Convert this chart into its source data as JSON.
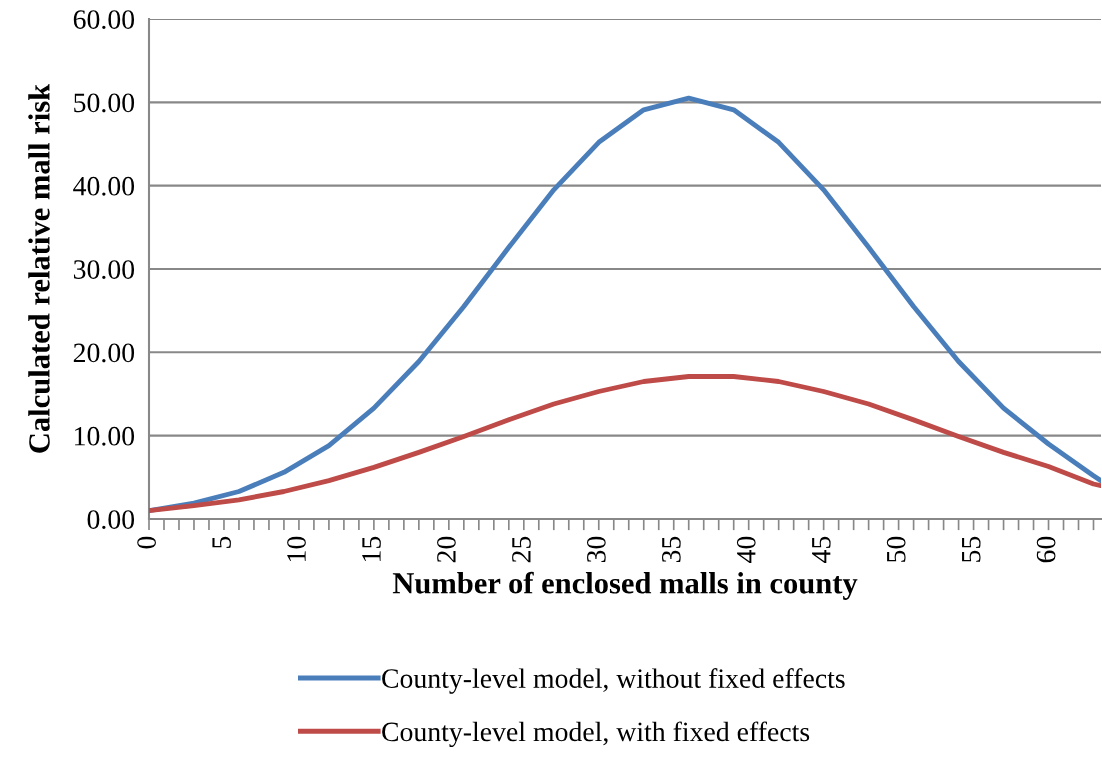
{
  "chart_data": {
    "type": "line",
    "xlabel": "Number of enclosed malls in county",
    "ylabel": "Calculated relative mall risk",
    "x": [
      0,
      3,
      6,
      9,
      12,
      15,
      18,
      21,
      24,
      27,
      30,
      33,
      36,
      39,
      42,
      45,
      48,
      51,
      54,
      57,
      60,
      63,
      63.5
    ],
    "series": [
      {
        "name": "County-level model, without fixed effects",
        "color": "#4a7ebb",
        "values": [
          1.0,
          1.9,
          3.3,
          5.6,
          8.8,
          13.3,
          18.9,
          25.5,
          32.6,
          39.5,
          45.2,
          49.1,
          50.5,
          49.1,
          45.2,
          39.5,
          32.6,
          25.5,
          18.9,
          13.3,
          9.0,
          5.2,
          4.6
        ]
      },
      {
        "name": "County-level model, with fixed effects",
        "color": "#be4b48",
        "values": [
          1.0,
          1.6,
          2.3,
          3.3,
          4.6,
          6.2,
          8.0,
          9.9,
          11.9,
          13.8,
          15.3,
          16.5,
          17.1,
          17.1,
          16.5,
          15.3,
          13.8,
          11.9,
          9.9,
          8.0,
          6.3,
          4.2,
          4.0
        ]
      }
    ],
    "xlim": [
      0,
      63.5
    ],
    "xticks": [
      0,
      {
        "value": 1,
        "label": null
      },
      {
        "value": 2,
        "label": null
      },
      {
        "value": 3,
        "label": null
      },
      {
        "value": 4,
        "label": null
      },
      5,
      {
        "value": 6,
        "label": null
      },
      {
        "value": 7,
        "label": null
      },
      {
        "value": 8,
        "label": null
      },
      {
        "value": 9,
        "label": null
      },
      10,
      {
        "value": 11,
        "label": null
      },
      {
        "value": 12,
        "label": null
      },
      {
        "value": 13,
        "label": null
      },
      {
        "value": 14,
        "label": null
      },
      15,
      {
        "value": 16,
        "label": null
      },
      {
        "value": 17,
        "label": null
      },
      {
        "value": 18,
        "label": null
      },
      {
        "value": 19,
        "label": null
      },
      20,
      {
        "value": 21,
        "label": null
      },
      {
        "value": 22,
        "label": null
      },
      {
        "value": 23,
        "label": null
      },
      {
        "value": 24,
        "label": null
      },
      25,
      {
        "value": 26,
        "label": null
      },
      {
        "value": 27,
        "label": null
      },
      {
        "value": 28,
        "label": null
      },
      {
        "value": 29,
        "label": null
      },
      30,
      {
        "value": 31,
        "label": null
      },
      {
        "value": 32,
        "label": null
      },
      {
        "value": 33,
        "label": null
      },
      {
        "value": 34,
        "label": null
      },
      35,
      {
        "value": 36,
        "label": null
      },
      {
        "value": 37,
        "label": null
      },
      {
        "value": 38,
        "label": null
      },
      {
        "value": 39,
        "label": null
      },
      40,
      {
        "value": 41,
        "label": null
      },
      {
        "value": 42,
        "label": null
      },
      {
        "value": 43,
        "label": null
      },
      {
        "value": 44,
        "label": null
      },
      45,
      {
        "value": 46,
        "label": null
      },
      {
        "value": 47,
        "label": null
      },
      {
        "value": 48,
        "label": null
      },
      {
        "value": 49,
        "label": null
      },
      50,
      {
        "value": 51,
        "label": null
      },
      {
        "value": 52,
        "label": null
      },
      {
        "value": 53,
        "label": null
      },
      {
        "value": 54,
        "label": null
      },
      55,
      {
        "value": 56,
        "label": null
      },
      {
        "value": 57,
        "label": null
      },
      {
        "value": 58,
        "label": null
      },
      {
        "value": 59,
        "label": null
      },
      60,
      {
        "value": 61,
        "label": null
      },
      {
        "value": 62,
        "label": null
      },
      {
        "value": 63,
        "label": null
      }
    ],
    "ylim": [
      0,
      60
    ],
    "yticks": [
      {
        "value": 0,
        "label": "0.00"
      },
      {
        "value": 10,
        "label": "10.00"
      },
      {
        "value": 20,
        "label": "20.00"
      },
      {
        "value": 30,
        "label": "30.00"
      },
      {
        "value": 40,
        "label": "40.00"
      },
      {
        "value": 50,
        "label": "50.00"
      },
      {
        "value": 60,
        "label": "60.00"
      }
    ],
    "grid": "y",
    "legend": "bottom",
    "marker": "none",
    "line_style": "solid"
  }
}
